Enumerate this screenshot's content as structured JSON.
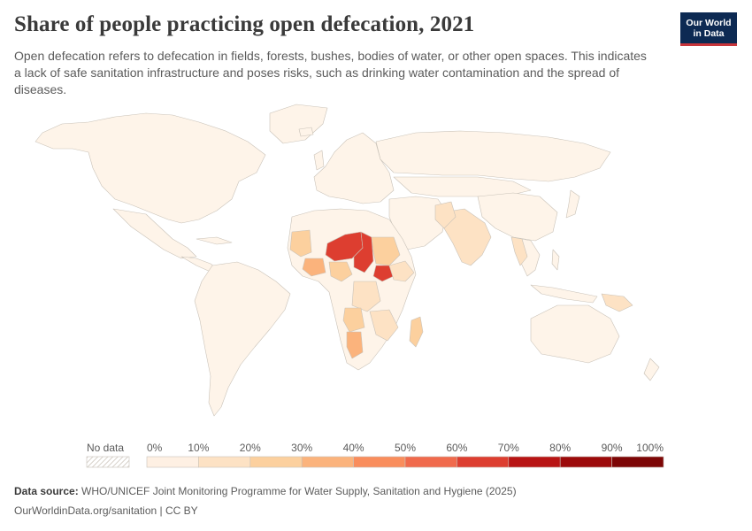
{
  "header": {
    "title": "Share of people practicing open defecation, 2021",
    "subtitle": "Open defecation refers to defecation in fields, forests, bushes, bodies of water, or other open spaces. This indicates a lack of safe sanitation infrastructure and poses risks, such as drinking water contamination and the spread of diseases.",
    "logo_line1": "Our World",
    "logo_line2": "in Data"
  },
  "legend": {
    "no_data_label": "No data",
    "ticks": [
      "0%",
      "10%",
      "20%",
      "30%",
      "40%",
      "50%",
      "60%",
      "70%",
      "80%",
      "90%",
      "100%"
    ],
    "colors": [
      "#fef0e3",
      "#fde2c4",
      "#fcd09e",
      "#fbb37c",
      "#f98d5c",
      "#f06a4c",
      "#dd3e30",
      "#b81414",
      "#9c0a0a",
      "#7d0606"
    ]
  },
  "colors": {
    "default_country": "#fef4e9",
    "border": "#c9c2b8",
    "low": "#fde2c4",
    "mid": "#fbc894",
    "high": "#dd3e30"
  },
  "footer": {
    "source_label": "Data source:",
    "source_text": "WHO/UNICEF Joint Monitoring Programme for Water Supply, Sanitation and Hygiene (2025)",
    "license_text": "OurWorldinData.org/sanitation | CC BY"
  }
}
